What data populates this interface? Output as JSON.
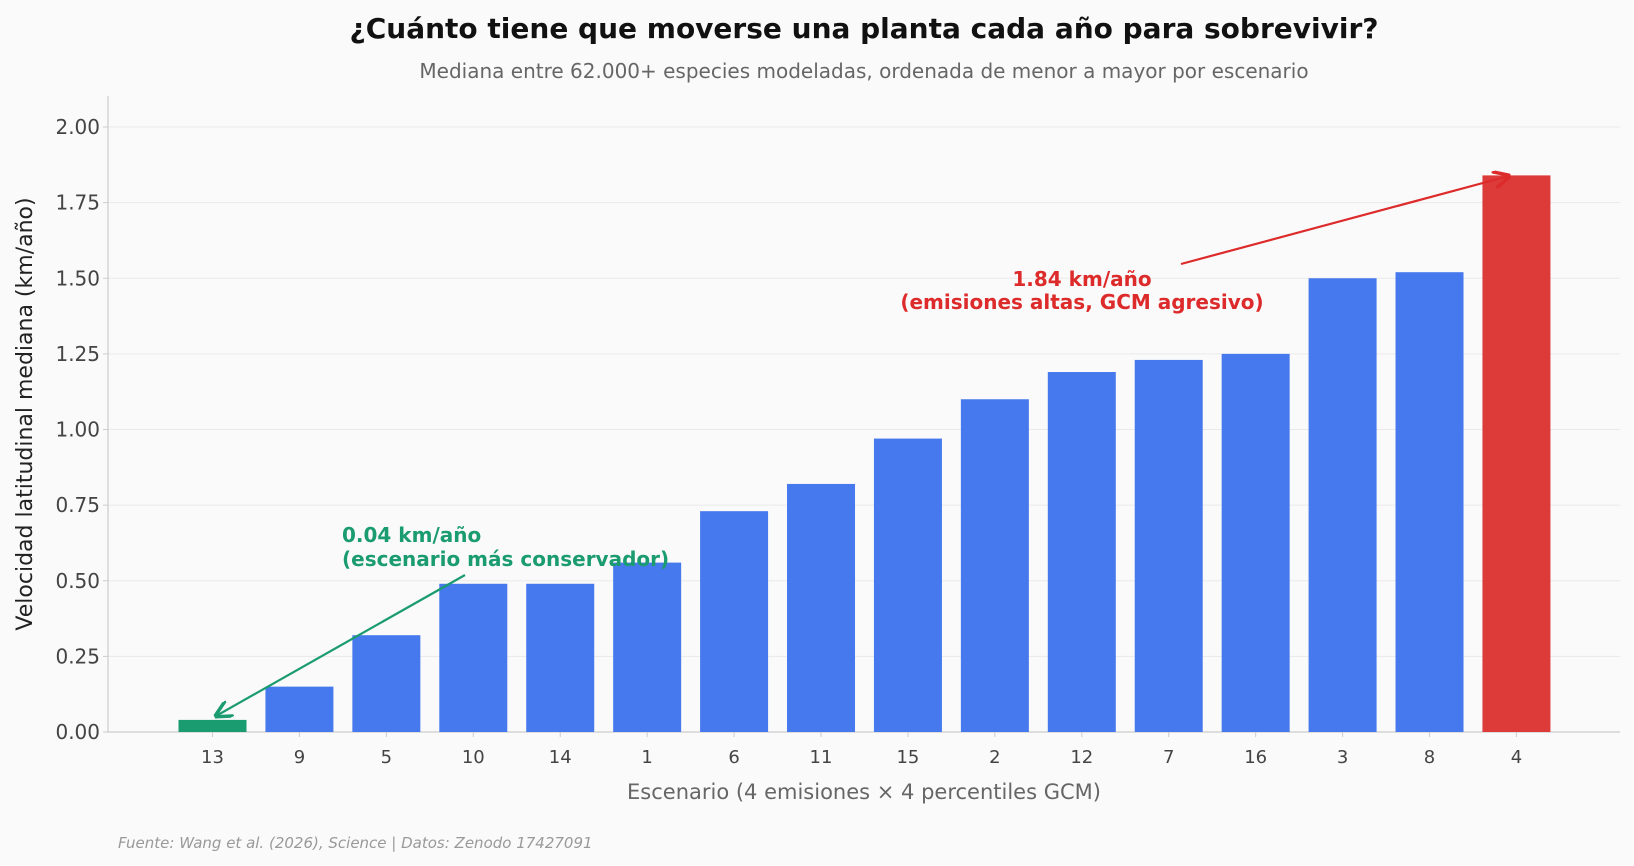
{
  "chart_data": {
    "type": "bar",
    "title": "¿Cuánto tiene que moverse una planta cada año para sobrevivir?",
    "subtitle": "Mediana entre 62.000+ especies modeladas, ordenada de menor a mayor por escenario",
    "xlabel": "Escenario (4 emisiones × 4 percentiles GCM)",
    "ylabel": "Velocidad latitudinal mediana (km/año)",
    "ylim": [
      0,
      2.1
    ],
    "yticks": [
      "0.00",
      "0.25",
      "0.50",
      "0.75",
      "1.00",
      "1.25",
      "1.50",
      "1.75",
      "2.00"
    ],
    "grid": "horizontal",
    "categories": [
      "13",
      "9",
      "5",
      "10",
      "14",
      "1",
      "6",
      "11",
      "15",
      "2",
      "12",
      "7",
      "16",
      "3",
      "8",
      "4"
    ],
    "values": [
      0.04,
      0.15,
      0.32,
      0.49,
      0.49,
      0.56,
      0.73,
      0.82,
      0.97,
      1.1,
      1.19,
      1.23,
      1.25,
      1.5,
      1.52,
      1.84
    ],
    "colors": {
      "default": "#4779ee",
      "lowest": "#1a9b70",
      "highest": "#dd3a3a"
    },
    "annotations": {
      "low": {
        "line1": "0.04 km/año",
        "line2": "(escenario más conservador)",
        "color": "#1a9b70"
      },
      "high": {
        "line1": "1.84 km/año",
        "line2": "(emisiones altas, GCM agresivo)",
        "color": "#dd2a2a"
      }
    },
    "source": "Fuente: Wang et al. (2026), Science | Datos: Zenodo 17427091"
  }
}
